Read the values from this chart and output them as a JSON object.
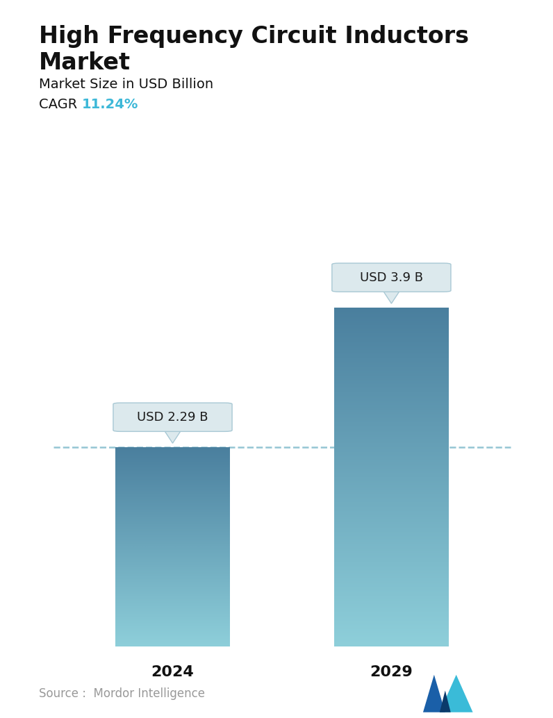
{
  "title_line1": "High Frequency Circuit Inductors",
  "title_line2": "Market",
  "subtitle": "Market Size in USD Billion",
  "cagr_label": "CAGR  ",
  "cagr_value": "11.24%",
  "cagr_color": "#3db8d8",
  "categories": [
    "2024",
    "2029"
  ],
  "values": [
    2.29,
    3.9
  ],
  "labels": [
    "USD 2.29 B",
    "USD 3.9 B"
  ],
  "bar_color_top": "#4a7f9e",
  "bar_color_bottom": "#8ecfda",
  "dashed_line_color": "#88bfcf",
  "dashed_line_value": 2.29,
  "source_text": "Source :  Mordor Intelligence",
  "background_color": "#ffffff",
  "ylim": [
    0,
    4.8
  ],
  "title_fontsize": 24,
  "subtitle_fontsize": 14,
  "cagr_fontsize": 14,
  "tick_fontsize": 16,
  "label_fontsize": 13,
  "source_fontsize": 12
}
